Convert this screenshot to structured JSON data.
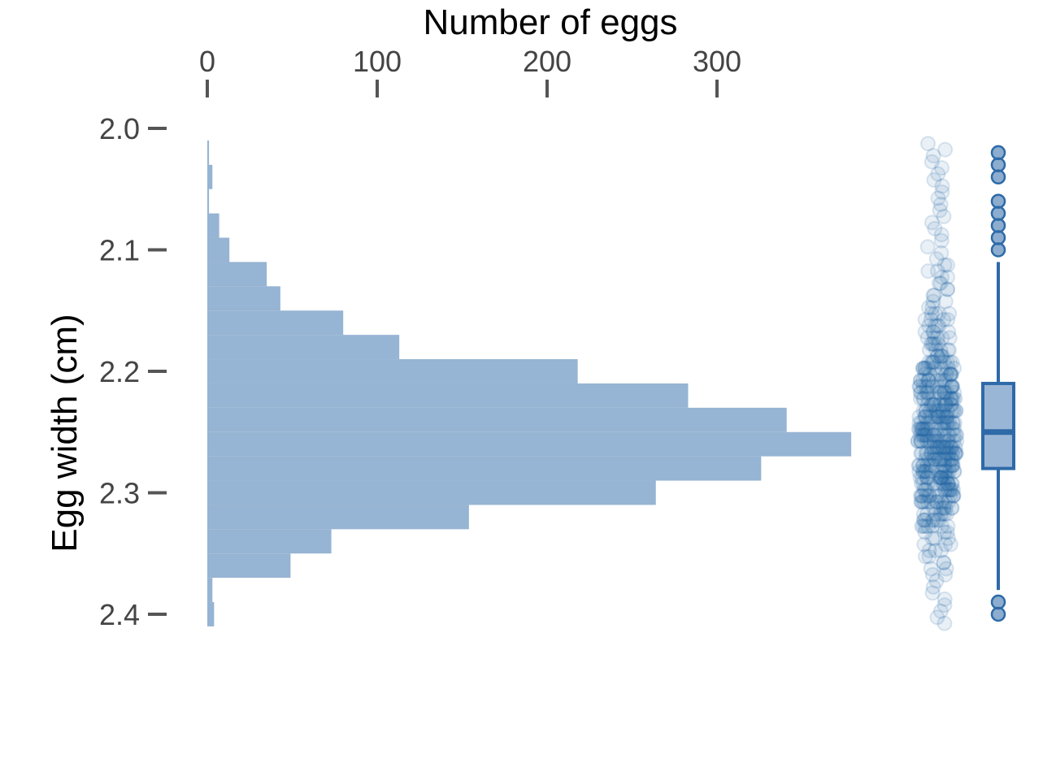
{
  "chart_data": {
    "type": "bar",
    "orientation": "horizontal-histogram",
    "title": "",
    "xlabel": "Number of eggs",
    "ylabel": "Egg width (cm)",
    "x_axis_position": "top",
    "xlim": [
      0,
      380
    ],
    "ylim": [
      2.0,
      2.4
    ],
    "x_ticks": [
      "0",
      "100",
      "200",
      "300"
    ],
    "x_tick_values": [
      0,
      100,
      200,
      300
    ],
    "y_ticks": [
      "2.0",
      "2.1",
      "2.2",
      "2.3",
      "2.4"
    ],
    "y_tick_values": [
      2.0,
      2.1,
      2.2,
      2.3,
      2.4
    ],
    "grid": false,
    "legend": "none",
    "bin_width": 0.02,
    "bins": [
      {
        "y0": 2.01,
        "y1": 2.03,
        "count": 1
      },
      {
        "y0": 2.03,
        "y1": 2.05,
        "count": 3
      },
      {
        "y0": 2.05,
        "y1": 2.07,
        "count": 1
      },
      {
        "y0": 2.07,
        "y1": 2.09,
        "count": 7
      },
      {
        "y0": 2.09,
        "y1": 2.11,
        "count": 13
      },
      {
        "y0": 2.11,
        "y1": 2.13,
        "count": 35
      },
      {
        "y0": 2.13,
        "y1": 2.15,
        "count": 43
      },
      {
        "y0": 2.15,
        "y1": 2.17,
        "count": 80
      },
      {
        "y0": 2.17,
        "y1": 2.19,
        "count": 113
      },
      {
        "y0": 2.19,
        "y1": 2.21,
        "count": 218
      },
      {
        "y0": 2.21,
        "y1": 2.23,
        "count": 283
      },
      {
        "y0": 2.23,
        "y1": 2.25,
        "count": 341
      },
      {
        "y0": 2.25,
        "y1": 2.27,
        "count": 379
      },
      {
        "y0": 2.27,
        "y1": 2.29,
        "count": 326
      },
      {
        "y0": 2.29,
        "y1": 2.31,
        "count": 264
      },
      {
        "y0": 2.31,
        "y1": 2.33,
        "count": 154
      },
      {
        "y0": 2.33,
        "y1": 2.35,
        "count": 73
      },
      {
        "y0": 2.35,
        "y1": 2.37,
        "count": 49
      },
      {
        "y0": 2.37,
        "y1": 2.39,
        "count": 3
      },
      {
        "y0": 2.39,
        "y1": 2.41,
        "count": 4
      }
    ],
    "boxplot": {
      "q1": 2.21,
      "median": 2.25,
      "q3": 2.28,
      "whisker_low": 2.11,
      "whisker_high": 2.38,
      "outliers": [
        2.02,
        2.03,
        2.04,
        2.06,
        2.07,
        2.08,
        2.09,
        2.1,
        2.39,
        2.4
      ]
    },
    "colors": {
      "bar": "#96b4d3",
      "point": "#2b6ca8",
      "box_fill": "#9ab6d6",
      "box_stroke": "#2e6aa8"
    }
  }
}
